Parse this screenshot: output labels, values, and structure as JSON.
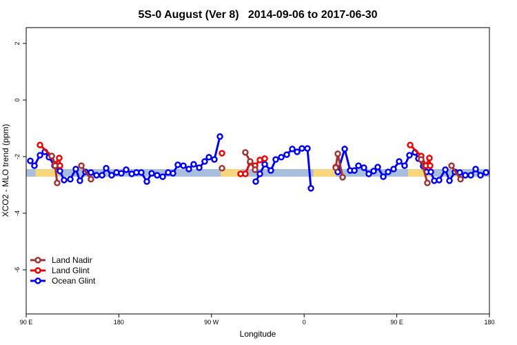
{
  "chart_data": {
    "type": "line",
    "title": "5S-0 August (Ver 8)   2014-09-06 to 2017-06-30",
    "xlabel": "Longitude",
    "ylabel": "XCO2 - MLO trend (ppm)",
    "xlim": [
      90,
      540
    ],
    "ylim": [
      -7.56,
      2.56
    ],
    "xticks": [
      {
        "value": 90,
        "label": "90 E"
      },
      180,
      {
        "value": 270,
        "label": "90 W"
      },
      {
        "value": 360,
        "label": "0"
      },
      {
        "value": 450,
        "label": "90 E"
      },
      {
        "value": 540,
        "label": "180"
      }
    ],
    "yticks": [
      -6,
      -4,
      -2,
      0,
      2
    ],
    "legend": "bottomleft",
    "band": {
      "ylim": [
        -2.71,
        -2.44
      ],
      "color": "#a9bedd",
      "land_color": "#f5d67c",
      "land": [
        [
          99,
          122
        ],
        [
          279,
          299
        ],
        [
          369,
          391
        ],
        [
          461,
          486
        ],
        [
          506,
          512
        ]
      ]
    },
    "series": [
      {
        "name": "Land Nadir",
        "color": "#a33333",
        "x": [
          114.8,
          118.1,
          120.1,
          null,
          143.6,
          152.9,
          null,
          280.2,
          null,
          302.9,
          307.6,
          312.3,
          null,
          390.7,
          392.7,
          397.4,
          null,
          473.7,
          479.7,
          null,
          503.2,
          511.9
        ],
        "values": [
          -1.98,
          -2.32,
          -2.93,
          null,
          -2.32,
          -2.8,
          null,
          -2.41,
          null,
          -1.85,
          -2.17,
          -2.46,
          null,
          -2.39,
          -1.9,
          -2.73,
          null,
          -2.1,
          -2.93,
          null,
          -2.32,
          -2.8
        ]
      },
      {
        "name": "Land Glint",
        "color": "#ee0000",
        "x": [
          103.4,
          114.8,
          118.1,
          122.1,
          122.8,
          null,
          280.2,
          null,
          298.3,
          302.9,
          307.6,
          312.3,
          317.0,
          321.7,
          null,
          390.7,
          null,
          463.0,
          473.7,
          478.4,
          481.7,
          482.4
        ],
        "values": [
          -1.59,
          -1.98,
          -2.27,
          -2.05,
          -2.32,
          null,
          -1.88,
          null,
          -2.61,
          -2.61,
          -2.2,
          -2.32,
          -2.12,
          -2.07,
          null,
          -2.37,
          null,
          -1.59,
          -1.98,
          -2.32,
          -2.05,
          -2.32
        ]
      },
      {
        "name": "Ocean Glint",
        "color": "#0000ee",
        "x": [
          94.0,
          98.0,
          103.4,
          108.1,
          112.1,
          117.5,
          122.8,
          126.8,
          132.9,
          138.2,
          142.2,
          147.6,
          152.9,
          158.3,
          163.7,
          167.7,
          173.0,
          177.7,
          182.4,
          187.1,
          192.5,
          197.1,
          201.8,
          207.2,
          211.9,
          217.2,
          222.6,
          227.9,
          232.6,
          237.3,
          242.7,
          248.0,
          252.7,
          258.1,
          263.4,
          267.5,
          272.8,
          278.2,
          null,
          313.0,
          317.0,
          321.7,
          327.7,
          332.4,
          337.8,
          343.1,
          348.5,
          353.2,
          357.9,
          363.2,
          366.6,
          null,
          392.7,
          399.4,
          404.7,
          408.8,
          412.8,
          418.1,
          422.8,
          427.5,
          431.5,
          436.9,
          441.6,
          446.9,
          452.3,
          457.6,
          462.3,
          467.7,
          471.0,
          475.7,
          479.1,
          483.1,
          486.4,
          491.1,
          497.2,
          501.2,
          506.5,
          511.2,
          516.6,
          521.9,
          526.6,
          531.3,
          536.7
        ],
        "values": [
          -2.15,
          -2.32,
          -1.95,
          -1.83,
          -2.02,
          -2.32,
          -2.51,
          -2.83,
          -2.8,
          -2.44,
          -2.85,
          -2.54,
          -2.56,
          -2.66,
          -2.66,
          -2.41,
          -2.66,
          -2.56,
          -2.59,
          -2.46,
          -2.61,
          -2.56,
          -2.56,
          -2.88,
          -2.59,
          -2.66,
          -2.71,
          -2.56,
          -2.59,
          -2.29,
          -2.32,
          -2.44,
          -2.27,
          -2.39,
          -2.17,
          -2.02,
          -2.1,
          -1.29,
          null,
          -2.88,
          -2.61,
          -2.27,
          -2.49,
          -2.1,
          -2.02,
          -1.93,
          -1.73,
          -1.83,
          -1.71,
          -1.71,
          -3.12,
          null,
          -2.54,
          -1.73,
          -2.49,
          -2.49,
          -2.32,
          -2.39,
          -2.61,
          -2.51,
          -2.37,
          -2.71,
          -2.54,
          -2.44,
          -2.17,
          -2.32,
          -1.95,
          -1.85,
          -2.07,
          -2.34,
          -2.54,
          -2.54,
          -2.85,
          -2.83,
          -2.46,
          -2.85,
          -2.54,
          -2.56,
          -2.66,
          -2.66,
          -2.44,
          -2.66,
          -2.56
        ]
      }
    ]
  }
}
